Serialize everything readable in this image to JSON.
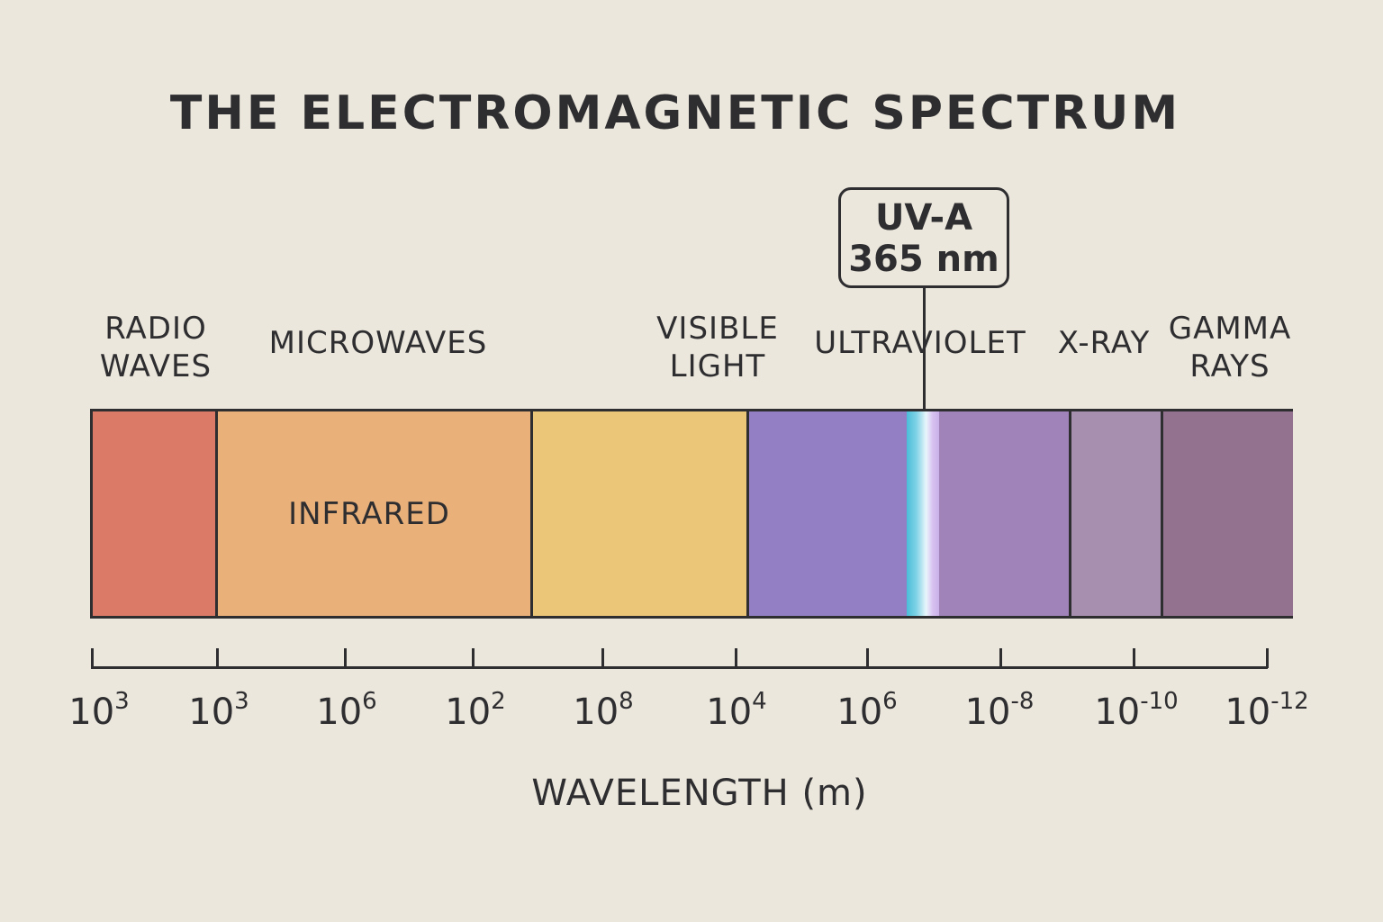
{
  "title": "THE ELECTROMAGNETIC SPECTRUM",
  "bands": [
    {
      "label_lines": [
        "RADIO",
        "WAVES"
      ],
      "color": "#dc7a68"
    },
    {
      "label_lines": [
        "MICROWAVES"
      ],
      "inner_label": "INFRARED",
      "color": "#eab07a"
    },
    {
      "label_lines": [
        "VISIBLE",
        "LIGHT"
      ],
      "color": "#ecc678"
    },
    {
      "label_lines": [
        "ULTRAVIOLET"
      ],
      "color": "#937fc4",
      "color2": "#a083b8"
    },
    {
      "label_lines": [
        "X-RAY"
      ],
      "color": "#a78fb0"
    },
    {
      "label_lines": [
        "GAMMA",
        "RAYS"
      ],
      "color": "#92728f"
    }
  ],
  "callout": {
    "line1": "UV-A",
    "line2": "365 nm",
    "highlight_color": "#4bbdd8"
  },
  "axis": {
    "label": "WAVELENGTH (m)",
    "ticks": [
      {
        "base": "10",
        "exp": "3"
      },
      {
        "base": "10",
        "exp": "3"
      },
      {
        "base": "10",
        "exp": "6"
      },
      {
        "base": "10",
        "exp": "2"
      },
      {
        "base": "10",
        "exp": "8"
      },
      {
        "base": "10",
        "exp": "4"
      },
      {
        "base": "10",
        "exp": "6"
      },
      {
        "base": "10",
        "exp": "-8"
      },
      {
        "base": "10",
        "exp": "-10"
      },
      {
        "base": "10",
        "exp": "-12"
      }
    ]
  },
  "colors": {
    "background": "#ece7dc",
    "ink": "#2e2e31"
  }
}
